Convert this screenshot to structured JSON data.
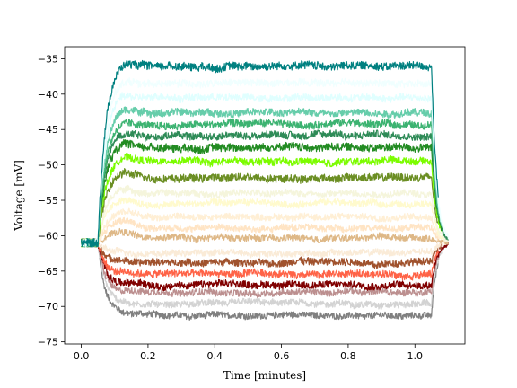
{
  "chart_data": {
    "type": "line",
    "title": "",
    "xlabel": "Time [minutes]",
    "ylabel": "Voltage [mV]",
    "xlim": [
      -0.05,
      1.15
    ],
    "ylim": [
      -75.3,
      -33.3
    ],
    "xticks": [
      0.0,
      0.2,
      0.4,
      0.6,
      0.8,
      1.0
    ],
    "xtick_labels": [
      "0.0",
      "0.2",
      "0.4",
      "0.6",
      "0.8",
      "1.0"
    ],
    "yticks": [
      -75,
      -70,
      -65,
      -60,
      -55,
      -50,
      -45,
      -40,
      -35
    ],
    "ytick_labels": [
      "−75",
      "−70",
      "−65",
      "−60",
      "−55",
      "−50",
      "−45",
      "−40",
      "−35"
    ],
    "grid": false,
    "legend": "none",
    "baseline_mv": -61.0,
    "step_start_min": 0.05,
    "step_end_min": 1.05,
    "series": [
      {
        "color": "#808080",
        "plateau": -71.2,
        "noise": 0.45
      },
      {
        "color": "#d3d3d3",
        "plateau": -69.6,
        "noise": 0.45
      },
      {
        "color": "#bc8f8f",
        "plateau": -68.0,
        "noise": 0.45
      },
      {
        "color": "#800000",
        "plateau": -66.9,
        "noise": 0.5
      },
      {
        "color": "#ff6347",
        "plateau": -65.4,
        "noise": 0.5
      },
      {
        "color": "#a0522d",
        "plateau": -63.8,
        "noise": 0.5
      },
      {
        "color": "#faebd7",
        "plateau": -62.4,
        "noise": 0.45
      },
      {
        "color": "#deb887",
        "plateau": -60.3,
        "noise": 0.45
      },
      {
        "color": "#ffe4c4",
        "plateau": -58.9,
        "noise": 0.45
      },
      {
        "color": "#ffefd5",
        "plateau": -57.3,
        "noise": 0.45
      },
      {
        "color": "#fffacd",
        "plateau": -55.5,
        "noise": 0.45
      },
      {
        "color": "#f5f5dc",
        "plateau": -54.0,
        "noise": 0.45
      },
      {
        "color": "#6b8e23",
        "plateau": -51.8,
        "noise": 0.55
      },
      {
        "color": "#7cfc00",
        "plateau": -49.5,
        "noise": 0.5
      },
      {
        "color": "#228b22",
        "plateau": -47.5,
        "noise": 0.55
      },
      {
        "color": "#2e8b57",
        "plateau": -45.8,
        "noise": 0.5
      },
      {
        "color": "#3cb371",
        "plateau": -44.3,
        "noise": 0.5
      },
      {
        "color": "#66cdaa",
        "plateau": -42.6,
        "noise": 0.5
      },
      {
        "color": "#e0ffff",
        "plateau": -40.5,
        "noise": 0.5
      },
      {
        "color": "#f0ffff",
        "plateau": -38.5,
        "noise": 0.5
      },
      {
        "color": "#008080",
        "plateau": -36.0,
        "noise": 0.55
      }
    ]
  }
}
